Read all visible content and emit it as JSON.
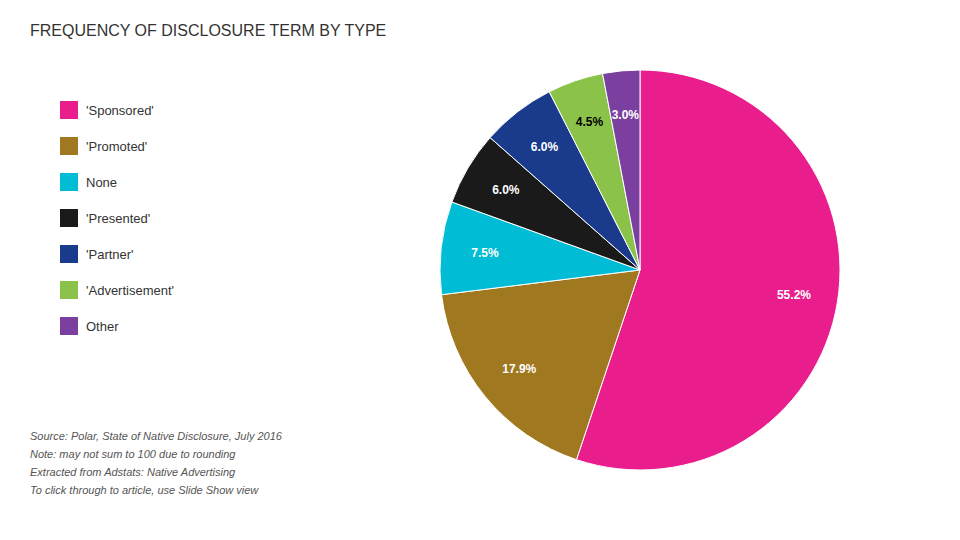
{
  "chart_data": {
    "type": "pie",
    "title": "FREQUENCY OF DISCLOSURE TERM BY TYPE",
    "categories": [
      "'Sponsored'",
      "'Promoted'",
      "None",
      "'Presented'",
      "'Partner'",
      "'Advertisement'",
      "Other"
    ],
    "values": [
      55.2,
      17.9,
      7.5,
      6.0,
      6.0,
      4.5,
      3.0
    ],
    "value_labels": [
      "55.2%",
      "17.9%",
      "7.5%",
      "6.0%",
      "6.0%",
      "4.5%",
      "3.0%"
    ],
    "colors": [
      "#E91E8C",
      "#A07820",
      "#00BCD4",
      "#1A1A1A",
      "#1A3A8C",
      "#8BC34A",
      "#7B3FA0"
    ],
    "data_labels": true,
    "legend": "left",
    "annotations": [
      "Source: Polar, State of Native Disclosure, July 2016",
      "Note: may not sum to 100 due to rounding",
      "Extracted from Adstats: Native Advertising",
      "To click through to article, use Slide Show view"
    ]
  }
}
